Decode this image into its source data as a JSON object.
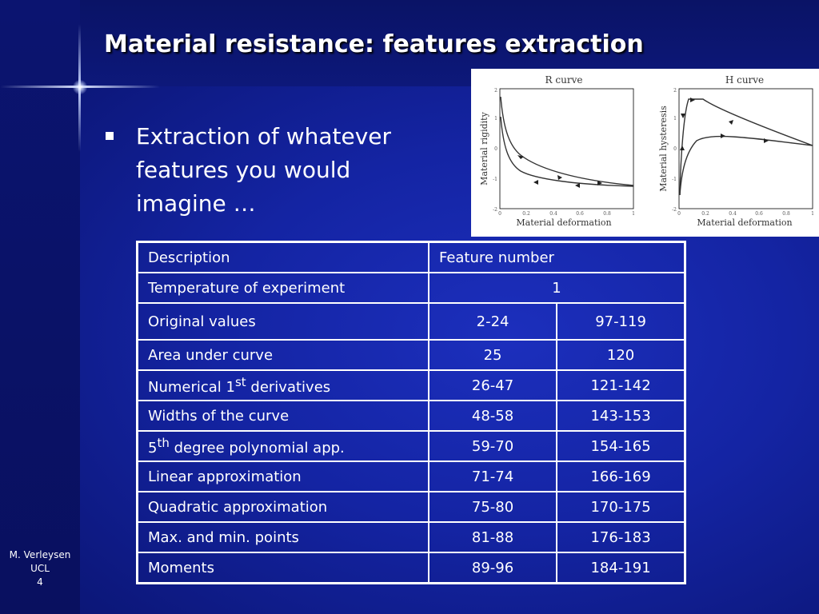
{
  "slide": {
    "title": "Material resistance: features extraction",
    "bullet": "Extraction of whatever features you would imagine …"
  },
  "figure": {
    "panels": [
      {
        "title": "R curve",
        "xlabel": "Material deformation",
        "ylabel": "Material rigidity",
        "xticks": [
          "0",
          "0.2",
          "0.4",
          "0.6",
          "0.8",
          "1"
        ],
        "yticks": [
          "2",
          "1",
          "0",
          "-1",
          "-2"
        ]
      },
      {
        "title": "H curve",
        "xlabel": "Material deformation",
        "ylabel": "Material hysteresis",
        "xticks": [
          "0",
          "0.2",
          "0.4",
          "0.6",
          "0.8",
          "1"
        ],
        "yticks": [
          "2",
          "1",
          "0",
          "-1",
          "-2"
        ]
      }
    ]
  },
  "table": {
    "header": {
      "description": "Description",
      "feature_number": "Feature number"
    },
    "temperature": {
      "description": "Temperature of experiment",
      "value": "1"
    },
    "rows": [
      {
        "a": "Original values",
        "b": "2-24",
        "c": "97-119"
      },
      {
        "a": "Area under curve",
        "b": "25",
        "c": "120"
      },
      {
        "a_pre": "Numerical 1",
        "a_sup": "st",
        "a_post": " derivatives",
        "b": "26-47",
        "c": "121-142"
      },
      {
        "a": "Widths of the curve",
        "b": "48-58",
        "c": "143-153"
      },
      {
        "a_pre": "5",
        "a_sup": "th",
        "a_post": " degree polynomial app.",
        "b": "59-70",
        "c": "154-165"
      },
      {
        "a": "Linear approximation",
        "b": "71-74",
        "c": "166-169"
      },
      {
        "a": "Quadratic approximation",
        "b": "75-80",
        "c": "170-175"
      },
      {
        "a": "Max. and min. points",
        "b": "81-88",
        "c": "176-183"
      },
      {
        "a": "Moments",
        "b": "89-96",
        "c": "184-191"
      }
    ]
  },
  "footer": {
    "author": "M. Verleysen",
    "institution": "UCL",
    "page": "4"
  },
  "colors": {
    "background": "#1424a3",
    "text": "#ffffff",
    "grid": "#ffffff"
  }
}
